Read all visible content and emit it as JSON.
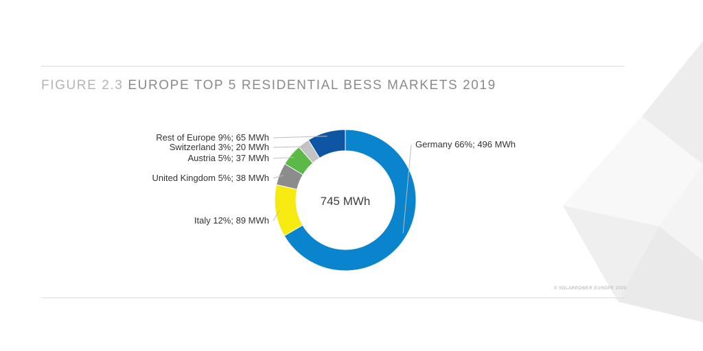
{
  "figure": {
    "number": "FIGURE 2.3",
    "title": "EUROPE TOP 5 RESIDENTIAL BESS MARKETS 2019"
  },
  "chart_data": {
    "type": "pie",
    "variant": "donut",
    "title": "EUROPE TOP 5 RESIDENTIAL BESS MARKETS 2019",
    "center_label": "745 MWh",
    "total": 745,
    "unit": "MWh",
    "slices": [
      {
        "name": "Germany",
        "percent": 66,
        "value": 496,
        "label": "Germany 66%; 496 MWh",
        "color": "#0a84cc"
      },
      {
        "name": "Italy",
        "percent": 12,
        "value": 89,
        "label": "Italy 12%; 89 MWh",
        "color": "#f7ea10"
      },
      {
        "name": "United Kingdom",
        "percent": 5,
        "value": 38,
        "label": "United Kingdom 5%; 38 MWh",
        "color": "#8c8c8c"
      },
      {
        "name": "Austria",
        "percent": 5,
        "value": 37,
        "label": "Austria 5%; 37 MWh",
        "color": "#5ab947"
      },
      {
        "name": "Switzerland",
        "percent": 3,
        "value": 20,
        "label": "Switzerland 3%; 20 MWh",
        "color": "#c3c3c3"
      },
      {
        "name": "Rest of Europe",
        "percent": 9,
        "value": 65,
        "label": "Rest of Europe 9%; 65 MWh",
        "color": "#0e56a3"
      }
    ]
  },
  "footer": {
    "copyright": "© SOLARPOWER EUROPE 2020"
  }
}
